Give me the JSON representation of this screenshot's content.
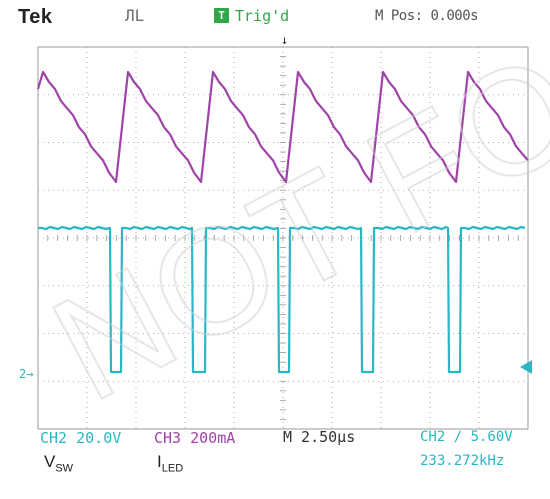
{
  "header": {
    "brand": "Tek",
    "run_state": "ЛL",
    "trigger_badge": "T",
    "trigger_status": "Trig'd",
    "position_readout": "M Pos: 0.000s"
  },
  "footer": {
    "ch2_scale": "CH2  20.0V",
    "ch3_scale": "CH3  200mA",
    "timebase": "M 2.50µs",
    "trigger_info": "CH2 ∕ 5.60V",
    "frequency": "233.272kHz",
    "label_vsw_main": "V",
    "label_vsw_sub": "SW",
    "label_iled_main": "I",
    "label_iled_sub": "LED"
  },
  "markers": {
    "ch2_ground": "2→",
    "trigger_arrow": "↓"
  },
  "colors": {
    "ch2": "#29b7c4",
    "ch3": "#a043a8",
    "grid": "#9a9a9a",
    "background": "#ffffff"
  },
  "watermark": "NOT FOR"
}
